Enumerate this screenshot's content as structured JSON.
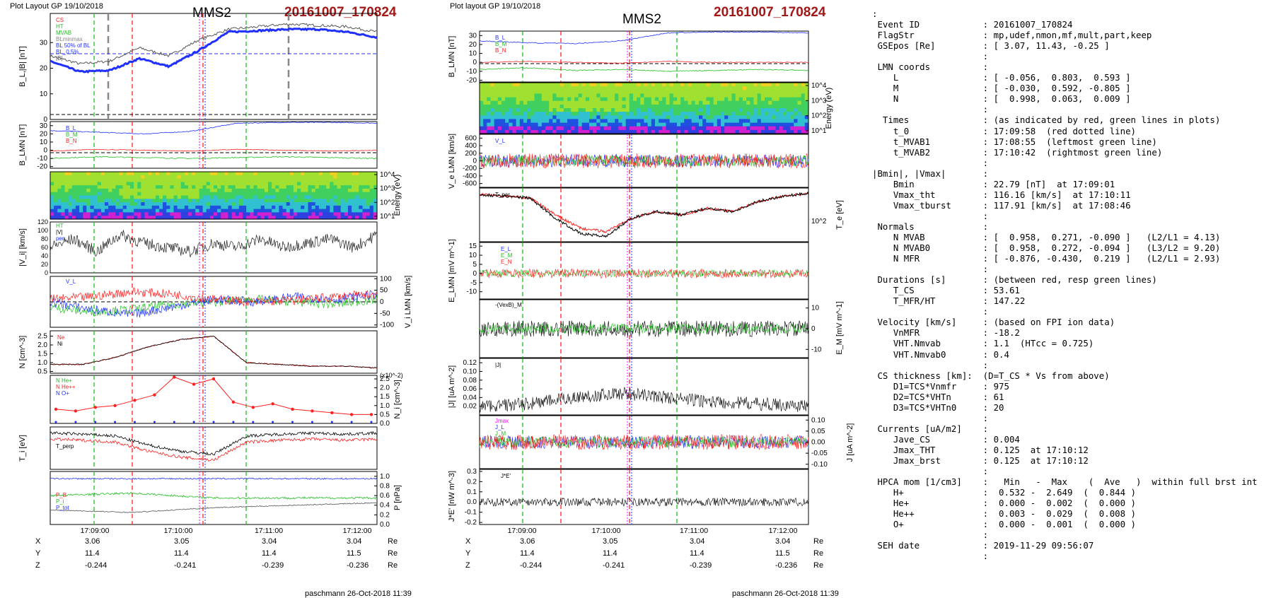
{
  "left_header": "Plot Layout GP 19/10/2018",
  "right_header": "Plot layout GP 19/10/2018",
  "spacecraft": "MMS2",
  "event_title": "20161007_170824",
  "footer": "paschmann 26-Oct-2018 11:39",
  "time_ticks": [
    "17:09:00",
    "17:10:00",
    "17:11:00",
    "17:12:00"
  ],
  "position_table": {
    "rows": [
      {
        "label": "X",
        "values": [
          "3.06",
          "3.05",
          "3.04",
          "3.04"
        ],
        "unit": "Re"
      },
      {
        "label": "Y",
        "values": [
          "11.4",
          "11.4",
          "11.4",
          "11.5"
        ],
        "unit": "Re"
      },
      {
        "label": "Z",
        "values": [
          "-0.244",
          "-0.241",
          "-0.239",
          "-0.236"
        ],
        "unit": "Re"
      }
    ]
  },
  "colors": {
    "red": "#ff2020",
    "green": "#20c020",
    "blue": "#2030ff",
    "black": "#000000",
    "magenta": "#ff00ff",
    "title": "#a01818"
  },
  "chart_data": [
    {
      "type": "line",
      "panel": "left-1",
      "ylabel": "B_L,|B| [nT]",
      "yticks": [
        "0",
        "10",
        "20",
        "30"
      ],
      "legend": [
        "CS",
        "HT",
        "MVAB",
        "BLminmax",
        "BL 50% of BL",
        "BL_0 5%",
        "|B|"
      ],
      "series": [
        {
          "name": "BL",
          "x": [
            "17:08:24",
            "17:08:50",
            "17:09:10",
            "17:09:40",
            "17:09:50",
            "17:10:05",
            "17:10:15",
            "17:10:30",
            "17:11:00",
            "17:11:30",
            "17:12:00",
            "17:12:20"
          ],
          "values": [
            22,
            18,
            18.5,
            23,
            20,
            26,
            33,
            33.5,
            34,
            34,
            33,
            31
          ]
        }
      ]
    },
    {
      "type": "line",
      "panel": "left-2",
      "ylabel": "B_LMN [nT]",
      "yticks": [
        "-20",
        "-10",
        "0",
        "10",
        "20",
        "30"
      ],
      "legend": [
        "B_L",
        "B_M",
        "B_N"
      ],
      "series": [
        {
          "name": "B_L",
          "values": [
            24,
            22,
            20,
            23,
            33,
            34,
            34,
            33
          ]
        },
        {
          "name": "B_M",
          "values": [
            -10,
            -8,
            -9,
            -10,
            -9,
            -8,
            -9,
            -10
          ]
        },
        {
          "name": "B_N",
          "values": [
            -1,
            1,
            0,
            -1,
            1,
            0,
            -1,
            0
          ]
        }
      ]
    },
    {
      "type": "heatmap",
      "panel": "left-3",
      "ylabel": "Energy (eV)",
      "yticks": [
        "10^1",
        "10^2",
        "10^3",
        "10^4"
      ]
    },
    {
      "type": "line",
      "panel": "left-4",
      "ylabel": "|V_i| [km/s]",
      "yticks": [
        "0",
        "10",
        "20",
        "30",
        "40",
        "50",
        "60",
        "70",
        "80",
        "90",
        "100",
        "110",
        "120"
      ],
      "legend": [
        "HT",
        "|V|",
        "pen"
      ],
      "series": [
        {
          "name": "|V_i|",
          "values": [
            60,
            80,
            50,
            90,
            70,
            60,
            50,
            70,
            60,
            80,
            60,
            70,
            80,
            60,
            90
          ]
        }
      ]
    },
    {
      "type": "line",
      "panel": "left-5",
      "ylabel": "V_i LMN [km/s]",
      "yticks": [
        "-100",
        "-50",
        "0",
        "50",
        "100"
      ],
      "legend": [
        "V_L"
      ],
      "series": [
        {
          "name": "V_L",
          "values": [
            10,
            20,
            40,
            30,
            10,
            0,
            5,
            20,
            30
          ]
        },
        {
          "name": "V_M",
          "values": [
            -20,
            -40,
            -30,
            -10,
            0,
            10,
            0,
            -10,
            10
          ]
        },
        {
          "name": "V_N",
          "values": [
            0,
            -30,
            -50,
            -20,
            10,
            0,
            20,
            10,
            30
          ]
        }
      ]
    },
    {
      "type": "line",
      "panel": "left-6",
      "ylabel": "N [cm^-3]",
      "yticks": [
        "0.5",
        "1.0",
        "1.5",
        "2.0",
        "2.5"
      ],
      "legend": [
        "Ne",
        "Ni"
      ],
      "series": [
        {
          "name": "Ne",
          "values": [
            0.9,
            0.9,
            1.3,
            1.9,
            2.3,
            2.5,
            1.0,
            0.9,
            0.8,
            0.8,
            0.7
          ]
        },
        {
          "name": "Ni",
          "values": [
            0.9,
            0.9,
            1.3,
            1.9,
            2.3,
            2.5,
            1.0,
            0.9,
            0.8,
            0.8,
            0.7
          ]
        }
      ]
    },
    {
      "type": "line",
      "panel": "left-7",
      "ylabel": "N_i [cm^-3]",
      "yticks": [
        "0.0",
        "0.5",
        "1.0",
        "1.5",
        "2.0",
        "2.5"
      ],
      "scale_note": "(x10^-2)",
      "legend": [
        "N He+",
        "N He++",
        "N O+"
      ],
      "series": [
        {
          "name": "N He++",
          "values": [
            0.8,
            0.7,
            0.9,
            1.0,
            1.3,
            1.6,
            2.6,
            2.2,
            2.5,
            1.2,
            0.9,
            1.1,
            0.8,
            0.7,
            0.6,
            0.5,
            0.5
          ]
        }
      ]
    },
    {
      "type": "line",
      "panel": "left-8",
      "ylabel": "T_i [eV]",
      "legend": [
        "T_par",
        "T_perp"
      ],
      "series": [
        {
          "name": "T_par",
          "values": [
            60,
            58,
            55,
            40,
            30,
            25,
            55,
            58,
            60,
            58,
            60
          ]
        },
        {
          "name": "T_perp",
          "values": [
            70,
            68,
            65,
            50,
            40,
            35,
            65,
            68,
            70,
            68,
            70
          ]
        }
      ]
    },
    {
      "type": "line",
      "panel": "left-9",
      "ylabel": "P [nPa]",
      "yticks": [
        "0.0",
        "0.2",
        "0.4",
        "0.6",
        "0.8",
        "1.0"
      ],
      "legend": [
        "P_B",
        "P_i",
        "P_tot"
      ],
      "series": [
        {
          "name": "P_tot",
          "values": [
            0.95,
            0.95,
            0.95,
            0.95,
            0.95
          ]
        },
        {
          "name": "P_i",
          "values": [
            0.6,
            0.65,
            0.55,
            0.55,
            0.55
          ]
        },
        {
          "name": "P_B",
          "values": [
            0.3,
            0.25,
            0.35,
            0.4,
            0.45
          ]
        }
      ]
    },
    {
      "type": "line",
      "panel": "right-1",
      "ylabel": "B_LMN [nT]",
      "yticks": [
        "-20",
        "-10",
        "0",
        "10",
        "20",
        "30"
      ],
      "legend": [
        "B_L",
        "B_M",
        "B_N"
      ]
    },
    {
      "type": "heatmap",
      "panel": "right-2",
      "ylabel": "Energy (eV)",
      "yticks": [
        "10^1",
        "10^2",
        "10^3",
        "10^4"
      ]
    },
    {
      "type": "line",
      "panel": "right-3",
      "ylabel": "V_e LMN [km/s]",
      "yticks": [
        "-600",
        "-400",
        "-200",
        "0",
        "200",
        "400",
        "600"
      ],
      "legend": [
        "V_L"
      ]
    },
    {
      "type": "line",
      "panel": "right-4",
      "ylabel": "T_e [eV]",
      "yticks": [
        "10^2"
      ],
      "legend": [
        "T_par"
      ]
    },
    {
      "type": "line",
      "panel": "right-5",
      "ylabel": "E_LMN [mV m^-1]",
      "yticks": [
        "-10",
        "-5",
        "0",
        "5",
        "10",
        "15"
      ],
      "legend": [
        "E_L",
        "E_M",
        "E_N"
      ]
    },
    {
      "type": "line",
      "panel": "right-6",
      "ylabel": "E_M [mV m^-1]",
      "yticks": [
        "-10",
        "0",
        "10"
      ],
      "legend": [
        "-(VexB)_M"
      ]
    },
    {
      "type": "line",
      "panel": "right-7",
      "ylabel": "|J| [uA m^-2]",
      "yticks": [
        "0.02",
        "0.04",
        "0.06",
        "0.08",
        "0.10",
        "0.12"
      ],
      "legend": [
        "|J|"
      ]
    },
    {
      "type": "line",
      "panel": "right-8",
      "ylabel": "J [uA m^-2]",
      "yticks": [
        "-0.10",
        "-0.05",
        "0.00",
        "0.05",
        "0.10"
      ],
      "legend": [
        "Jmax",
        "J_L",
        "J_M",
        "J_N"
      ]
    },
    {
      "type": "line",
      "panel": "right-9",
      "ylabel": "J*E' [nW m^-3]",
      "yticks": [
        "-0.2",
        "-0.1",
        "0.0",
        "0.1",
        "0.2",
        "0.3"
      ],
      "legend": [
        "J*E'"
      ]
    }
  ],
  "event_info": [
    ":",
    " Event ID            : 20161007_170824",
    " FlagStr             : mp,udef,nmon,mf,mult,part,keep",
    " GSEpos [Re]         : [ 3.07, 11.43, -0.25 ]",
    "                     :",
    " LMN coords          :",
    "    L                : [ -0.056,  0.803,  0.593 ]",
    "    M                : [ -0.030,  0.592, -0.805 ]",
    "    N                : [  0.998,  0.063,  0.009 ]",
    "                     :",
    "  Times              : (as indicated by red, green lines in plots)",
    "    t_0              : 17:09:58  (red dotted line)",
    "    t_MVAB1          : 17:08:55  (leftmost green line)",
    "    t_MVAB2          : 17:10:42  (rightmost green line)",
    "                     :",
    "|Bmin|, |Vmax|       :",
    "    Bmin             : 22.79 [nT]  at 17:09:01",
    "    Vmax_tht         : 116.16 [km/s]  at 17:10:11",
    "    Vmax_tburst      : 117.91 [km/s]  at 17:08:46",
    "                     :",
    " Normals             :",
    "    N MVAB           : [  0.958,  0.271, -0.090 ]   (L2/L1 = 4.13)",
    "    N MVAB0          : [  0.958,  0.272, -0.094 ]   (L3/L2 = 9.20)",
    "    N MFR            : [ -0.876, -0.430,  0.219 ]   (L2/L1 = 2.93)",
    "                     :",
    " Durations [s]       : (between red, resp green lines)",
    "    T_CS             : 53.61",
    "    T_MFR/HT         : 147.22",
    "                     :",
    " Velocity [km/s]     : (based on FPI ion data)",
    "    VnMFR            : -18.2",
    "    VHT.Nmvab        : 1.1  (HTcc = 0.725)",
    "    VHT.Nmvab0       : 0.4",
    "                     :",
    " CS thickness [km]:  (D=T_CS * Vs from above)",
    "    D1=TCS*Vnmfr     : 975",
    "    D2=TCS*VHTn      : 61",
    "    D3=TCS*VHTn0     : 20",
    "                     :",
    " Currents [uA/m2]    :",
    "    Jave_CS          : 0.004",
    "    Jmax_THT         : 0.125  at 17:10:12",
    "    Jmax_brst        : 0.125  at 17:10:12",
    "                     :",
    " HPCA mom [1/cm3]    :   Min   -  Max    (  Ave   )  within full brst int",
    "    H+               :  0.532 -  2.649  (  0.844 )",
    "    He+              :  0.000 -  0.002  (  0.000 )",
    "    He++             :  0.003 -  0.029  (  0.008 )",
    "    O+               :  0.000 -  0.001  (  0.000 )",
    "                     :",
    " SEH date            : 2019-11-29 09:56:07",
    "                     :"
  ]
}
